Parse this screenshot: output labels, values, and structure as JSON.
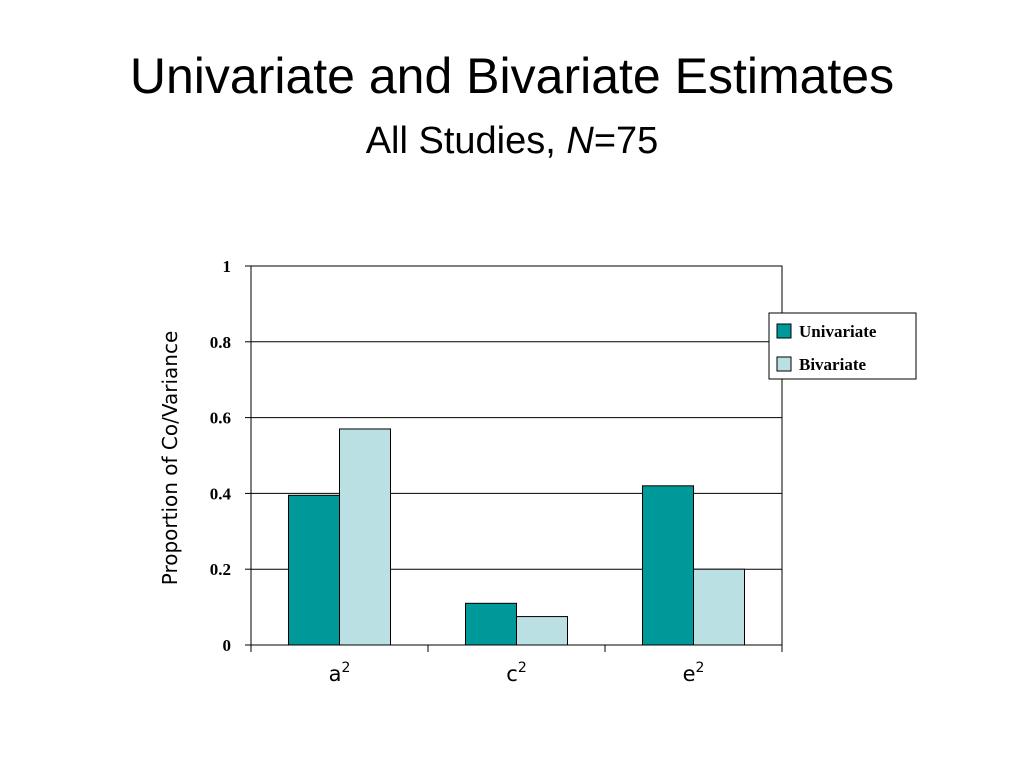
{
  "title": "Univariate and Bivariate Estimates",
  "subtitle": {
    "prefix": "All Studies, ",
    "italic": "N",
    "suffix": "=75"
  },
  "chart_data": {
    "type": "bar",
    "categories": [
      {
        "base": "a",
        "sup": "2"
      },
      {
        "base": "c",
        "sup": "2"
      },
      {
        "base": "e",
        "sup": "2"
      }
    ],
    "series": [
      {
        "name": "Univariate",
        "color": "#009999",
        "values": [
          0.395,
          0.11,
          0.42
        ]
      },
      {
        "name": "Bivariate",
        "color": "#bbe0e3",
        "values": [
          0.57,
          0.075,
          0.2
        ]
      }
    ],
    "xlabel": "",
    "ylabel": "Proportion of Co/Variance",
    "ylim": [
      0,
      1
    ],
    "yticks": [
      "0",
      "0.2",
      "0.4",
      "0.6",
      "0.8",
      "1"
    ],
    "ytick_values": [
      0,
      0.2,
      0.4,
      0.6,
      0.8,
      1
    ],
    "grid": true,
    "legend_position": "right"
  }
}
